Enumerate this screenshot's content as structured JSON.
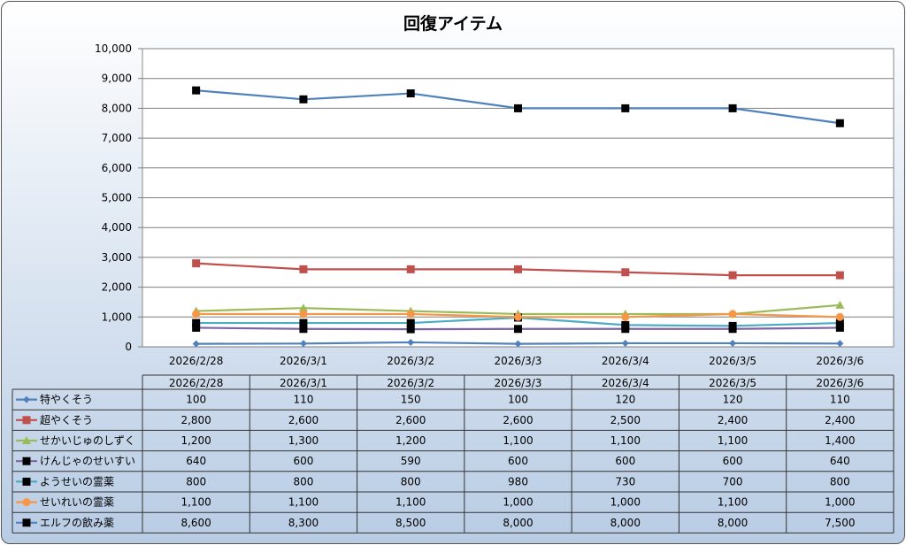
{
  "chart_data": {
    "type": "line",
    "title": "回復アイテム",
    "xlabel": "",
    "ylabel": "",
    "ylim": [
      0,
      10000
    ],
    "yticks": [
      "0",
      "1,000",
      "2,000",
      "3,000",
      "4,000",
      "5,000",
      "6,000",
      "7,000",
      "8,000",
      "9,000",
      "10,000"
    ],
    "grid": true,
    "legend": "data-table",
    "categories": [
      "2026/2/28",
      "2026/3/1",
      "2026/3/2",
      "2026/3/3",
      "2026/3/4",
      "2026/3/5",
      "2026/3/6"
    ],
    "series": [
      {
        "name": "特やくそう",
        "values": [
          100,
          110,
          150,
          100,
          120,
          120,
          110
        ],
        "labels": [
          "100",
          "110",
          "150",
          "100",
          "120",
          "120",
          "110"
        ],
        "color": "#4F81BD",
        "marker": "diamond",
        "marker_color": "#4F81BD"
      },
      {
        "name": "超やくそう",
        "values": [
          2800,
          2600,
          2600,
          2600,
          2500,
          2400,
          2400
        ],
        "labels": [
          "2,800",
          "2,600",
          "2,600",
          "2,600",
          "2,500",
          "2,400",
          "2,400"
        ],
        "color": "#C0504D",
        "marker": "square",
        "marker_color": "#C0504D"
      },
      {
        "name": "せかいじゅのしずく",
        "values": [
          1200,
          1300,
          1200,
          1100,
          1100,
          1100,
          1400
        ],
        "labels": [
          "1,200",
          "1,300",
          "1,200",
          "1,100",
          "1,100",
          "1,100",
          "1,400"
        ],
        "color": "#9BBB59",
        "marker": "triangle",
        "marker_color": "#9BBB59"
      },
      {
        "name": "けんじゃのせいすい",
        "values": [
          640,
          600,
          590,
          600,
          600,
          600,
          640
        ],
        "labels": [
          "640",
          "600",
          "590",
          "600",
          "600",
          "600",
          "640"
        ],
        "color": "#8064A2",
        "marker": "square",
        "marker_color": "#000000"
      },
      {
        "name": "ようせいの霊薬",
        "values": [
          800,
          800,
          800,
          980,
          730,
          700,
          800
        ],
        "labels": [
          "800",
          "800",
          "800",
          "980",
          "730",
          "700",
          "800"
        ],
        "color": "#4BACC6",
        "marker": "square",
        "marker_color": "#000000"
      },
      {
        "name": "せいれいの霊薬",
        "values": [
          1100,
          1100,
          1100,
          1000,
          1000,
          1100,
          1000
        ],
        "labels": [
          "1,100",
          "1,100",
          "1,100",
          "1,000",
          "1,000",
          "1,100",
          "1,000"
        ],
        "color": "#F79646",
        "marker": "circle",
        "marker_color": "#F79646"
      },
      {
        "name": "エルフの飲み薬",
        "values": [
          8600,
          8300,
          8500,
          8000,
          8000,
          8000,
          7500
        ],
        "labels": [
          "8,600",
          "8,300",
          "8,500",
          "8,000",
          "8,000",
          "8,000",
          "7,500"
        ],
        "color": "#4F81BD",
        "marker": "square",
        "marker_color": "#000000"
      }
    ]
  }
}
